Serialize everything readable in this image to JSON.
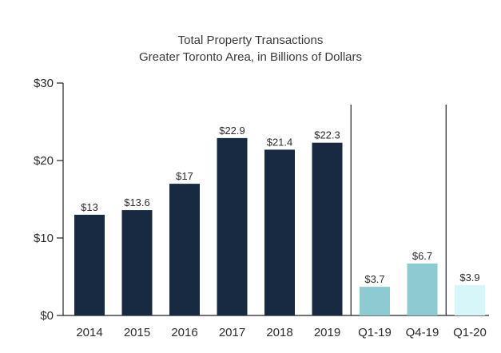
{
  "chart_data": {
    "type": "bar",
    "title": "Total Property Transactions",
    "subtitle": "Greater Toronto Area, in Billions of Dollars",
    "xlabel": "",
    "ylabel": "",
    "ylim": [
      0,
      30
    ],
    "yticks": [
      {
        "value": 0,
        "label": "$0"
      },
      {
        "value": 10,
        "label": "$10"
      },
      {
        "value": 20,
        "label": "$20"
      },
      {
        "value": 30,
        "label": "$30"
      }
    ],
    "categories": [
      "2014",
      "2015",
      "2016",
      "2017",
      "2018",
      "2019",
      "Q1-19",
      "Q4-19",
      "Q1-20"
    ],
    "values": [
      13,
      13.6,
      17,
      22.9,
      21.4,
      22.3,
      3.7,
      6.7,
      3.9
    ],
    "data_labels": [
      "$13",
      "$13.6",
      "$17",
      "$22.9",
      "$21.4",
      "$22.3",
      "$3.7",
      "$6.7",
      "$3.9"
    ],
    "colors": [
      "#172a41",
      "#172a41",
      "#172a41",
      "#172a41",
      "#172a41",
      "#172a41",
      "#8dcbd3",
      "#8dcbd3",
      "#d6f6f9"
    ],
    "grid": false,
    "group_separators_after": [
      "2019",
      "Q4-19"
    ]
  }
}
